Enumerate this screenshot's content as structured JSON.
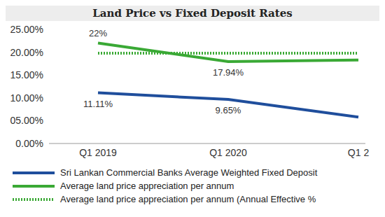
{
  "chart_data": {
    "type": "line",
    "title": "Land Price vs Fixed Deposit Rates",
    "categories": [
      "Q1 2019",
      "Q1 2020",
      "Q1 2"
    ],
    "series": [
      {
        "name": "Sri Lankan Commercial Banks Average Weighted Fixed Deposit",
        "color": "#1f4e9c",
        "line_style": "solid",
        "values": [
          11.11,
          9.65,
          5.8
        ],
        "value_labels": [
          "11.11%",
          "9.65%",
          null
        ]
      },
      {
        "name": "Average land price appreciation per annum",
        "color": "#3aa935",
        "line_style": "solid",
        "values": [
          22,
          17.94,
          18.3
        ],
        "value_labels": [
          "22%",
          "17.94%",
          null
        ]
      },
      {
        "name": "Average land price appreciation per annum (Annual Effective %",
        "color": "#3aa935",
        "line_style": "dotted",
        "values": [
          19.8,
          19.8,
          19.8
        ]
      }
    ],
    "ylim": [
      0,
      25
    ],
    "yticks": [
      {
        "value": 0,
        "label": "0.00%"
      },
      {
        "value": 5,
        "label": "05.00%"
      },
      {
        "value": 10,
        "label": "10.00%"
      },
      {
        "value": 15,
        "label": "15.00%"
      },
      {
        "value": 20,
        "label": "20.00%"
      },
      {
        "value": 25,
        "label": "25.00%"
      }
    ],
    "grid": false,
    "data_labels": true,
    "legend": "bottom"
  }
}
